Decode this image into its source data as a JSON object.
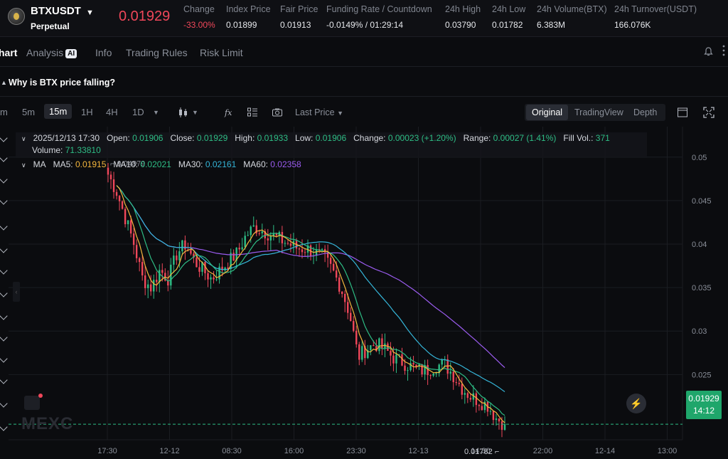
{
  "ticker": {
    "symbol": "BTXUSDT",
    "contract_type": "Perpetual",
    "last_price": "0.01929",
    "stats": [
      {
        "label": "Change",
        "value": "-33.00%"
      },
      {
        "label": "Index Price",
        "value": "0.01899"
      },
      {
        "label": "Fair Price",
        "value": "0.01913"
      },
      {
        "label": "Funding Rate / Countdown",
        "value": "-0.0149% / 01:29:14"
      },
      {
        "label": "24h High",
        "value": "0.03790"
      },
      {
        "label": "24h Low",
        "value": "0.01782"
      },
      {
        "label": "24h Volume(BTX)",
        "value": "6.383M"
      },
      {
        "label": "24h Turnover(USDT)",
        "value": "166.076K"
      }
    ]
  },
  "tabs": [
    "hart",
    "Analysis",
    "Info",
    "Trading Rules",
    "Risk Limit"
  ],
  "ai_badge": "AI",
  "question": "Why is BTX price falling?",
  "toolbar": {
    "timeframes": [
      "m",
      "5m",
      "15m",
      "1H",
      "4H",
      "1D"
    ],
    "price_source": "Last Price",
    "views": [
      "Original",
      "TradingView",
      "Depth"
    ]
  },
  "legend": {
    "datetime": "2025/12/13 17:30",
    "open_label": "Open:",
    "open": "0.01906",
    "close_label": "Close:",
    "close": "0.01929",
    "high_label": "High:",
    "high": "0.01933",
    "low_label": "Low:",
    "low": "0.01906",
    "change_label": "Change:",
    "change": "0.00023 (+1.20%)",
    "range_label": "Range:",
    "range": "0.00027 (1.41%)",
    "fillvol_label": "Fill Vol.:",
    "fillvol": "371",
    "volume_label": "Volume:",
    "volume": "71.33810"
  },
  "ma": {
    "label": "MA",
    "ma5_label": "MA5:",
    "ma5": "0.01915",
    "ma10_label": "MA10:",
    "ma10": "0.02021",
    "ma30_label": "MA30:",
    "ma30": "0.02161",
    "ma60_label": "MA60:",
    "ma60": "0.02358"
  },
  "colors": {
    "up": "#2ebd85",
    "down": "#f0475a",
    "ma5": "#f4b73d",
    "ma10": "#2ebd85",
    "ma30": "#35b5d8",
    "ma60": "#9b5cf0"
  },
  "current_price_tag": {
    "price": "0.01929",
    "countdown": "14:12"
  },
  "watermark": "MEXC",
  "chart_data": {
    "type": "candlestick",
    "y_ticks": [
      "0.05",
      "0.045",
      "0.04",
      "0.035",
      "0.03",
      "0.025"
    ],
    "ylim": [
      0.0175,
      0.0535
    ],
    "x_ticks": [
      "17:30",
      "12-12",
      "08:30",
      "16:00",
      "23:30",
      "12-13",
      "14:30",
      "22:00",
      "12-14",
      "13:00"
    ],
    "high_label": "0.04879",
    "low_label": "0.01782",
    "last_price": 0.01929,
    "close_path": [
      0.048,
      0.046,
      0.043,
      0.04,
      0.036,
      0.035,
      0.037,
      0.036,
      0.039,
      0.04,
      0.038,
      0.037,
      0.036,
      0.037,
      0.038,
      0.039,
      0.041,
      0.042,
      0.0415,
      0.041,
      0.0405,
      0.04,
      0.0395,
      0.0395,
      0.039,
      0.0385,
      0.037,
      0.035,
      0.032,
      0.027,
      0.028,
      0.0285,
      0.028,
      0.027,
      0.0265,
      0.026,
      0.0255,
      0.0255,
      0.026,
      0.0262,
      0.025,
      0.0235,
      0.0225,
      0.022,
      0.0215,
      0.02,
      0.0193
    ]
  }
}
